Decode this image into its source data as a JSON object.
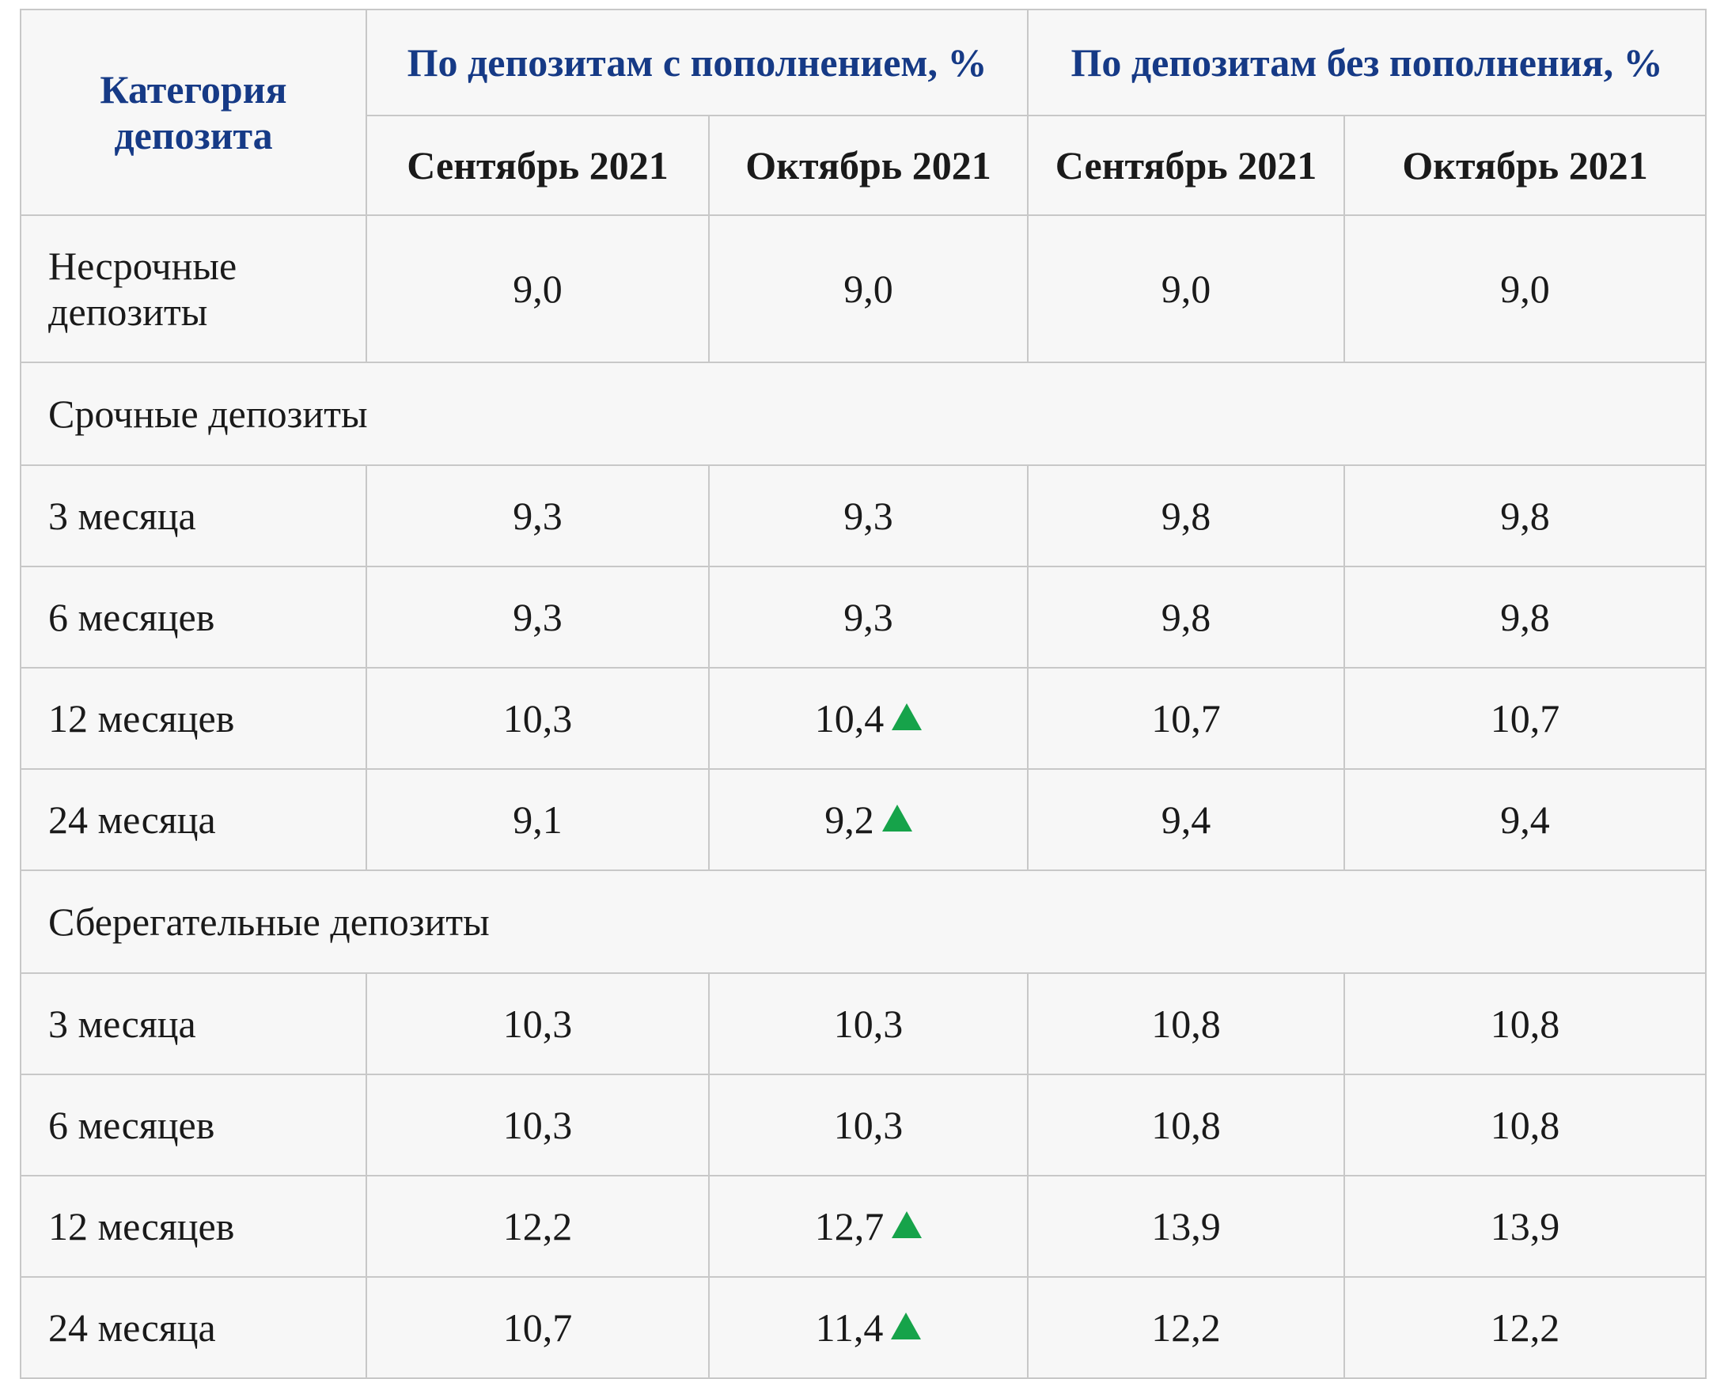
{
  "header": {
    "category": "Категория депозита",
    "group_with": "По депозитам с пополнением, %",
    "group_without": "По депозитам без пополнения, %",
    "months": [
      "Сентябрь 2021",
      "Октябрь 2021",
      "Сентябрь 2021",
      "Октябрь 2021"
    ]
  },
  "demand": {
    "label": "Несрочные депозиты",
    "values": [
      "9,0",
      "9,0",
      "9,0",
      "9,0"
    ]
  },
  "term_section": {
    "label": "Срочные депозиты",
    "rows": [
      {
        "label": "3 месяца",
        "values": [
          "9,3",
          "9,3",
          "9,8",
          "9,8"
        ],
        "oct_up": false
      },
      {
        "label": "6 месяцев",
        "values": [
          "9,3",
          "9,3",
          "9,8",
          "9,8"
        ],
        "oct_up": false
      },
      {
        "label": "12 месяцев",
        "values": [
          "10,3",
          "10,4",
          "10,7",
          "10,7"
        ],
        "oct_up": true
      },
      {
        "label": "24 месяца",
        "values": [
          "9,1",
          "9,2",
          "9,4",
          "9,4"
        ],
        "oct_up": true
      }
    ]
  },
  "savings_section": {
    "label": "Сберегательные депозиты",
    "rows": [
      {
        "label": "3 месяца",
        "values": [
          "10,3",
          "10,3",
          "10,8",
          "10,8"
        ],
        "oct_up": false
      },
      {
        "label": "6 месяцев",
        "values": [
          "10,3",
          "10,3",
          "10,8",
          "10,8"
        ],
        "oct_up": false
      },
      {
        "label": "12 месяцев",
        "values": [
          "12,2",
          "12,7",
          "13,9",
          "13,9"
        ],
        "oct_up": true
      },
      {
        "label": "24 месяца",
        "values": [
          "10,7",
          "11,4",
          "12,2",
          "12,2"
        ],
        "oct_up": true
      }
    ]
  },
  "colors": {
    "header_text": "#163a86",
    "up_arrow": "#16a34a",
    "cell_bg": "#f7f7f7",
    "border": "#c8c8c8"
  },
  "icons": {
    "increase": "up-triangle-icon"
  }
}
